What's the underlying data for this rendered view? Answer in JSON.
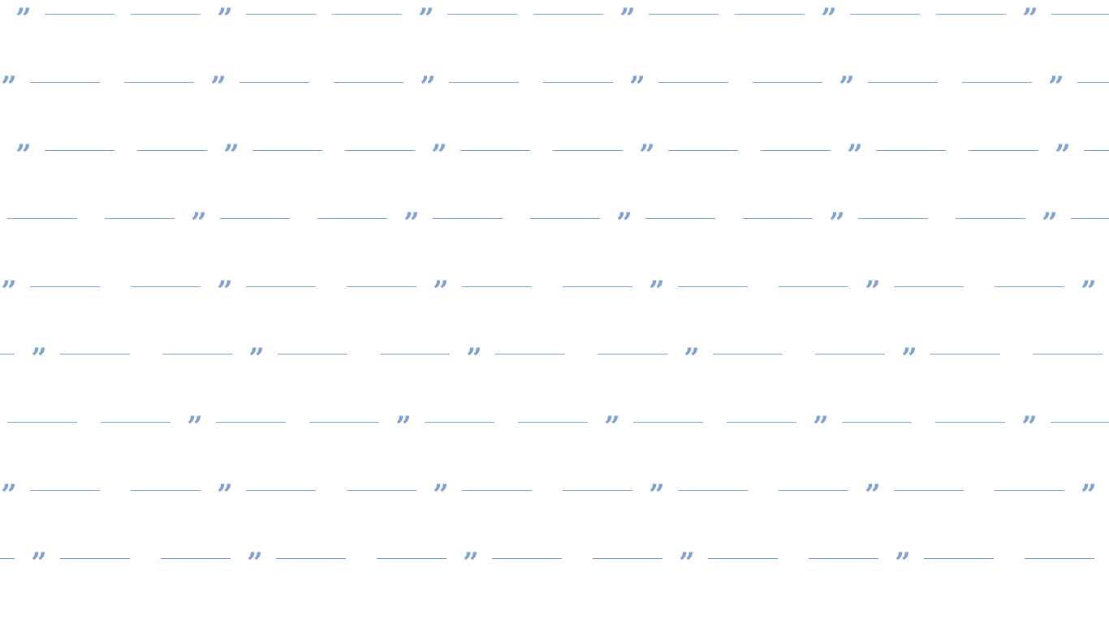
{
  "pattern": {
    "name": "closing quotation mark pattern",
    "glyph": "”",
    "icon": "closing-quote-icon",
    "color": "#7ca0d4",
    "background": "#ffffff",
    "rows": 9
  }
}
